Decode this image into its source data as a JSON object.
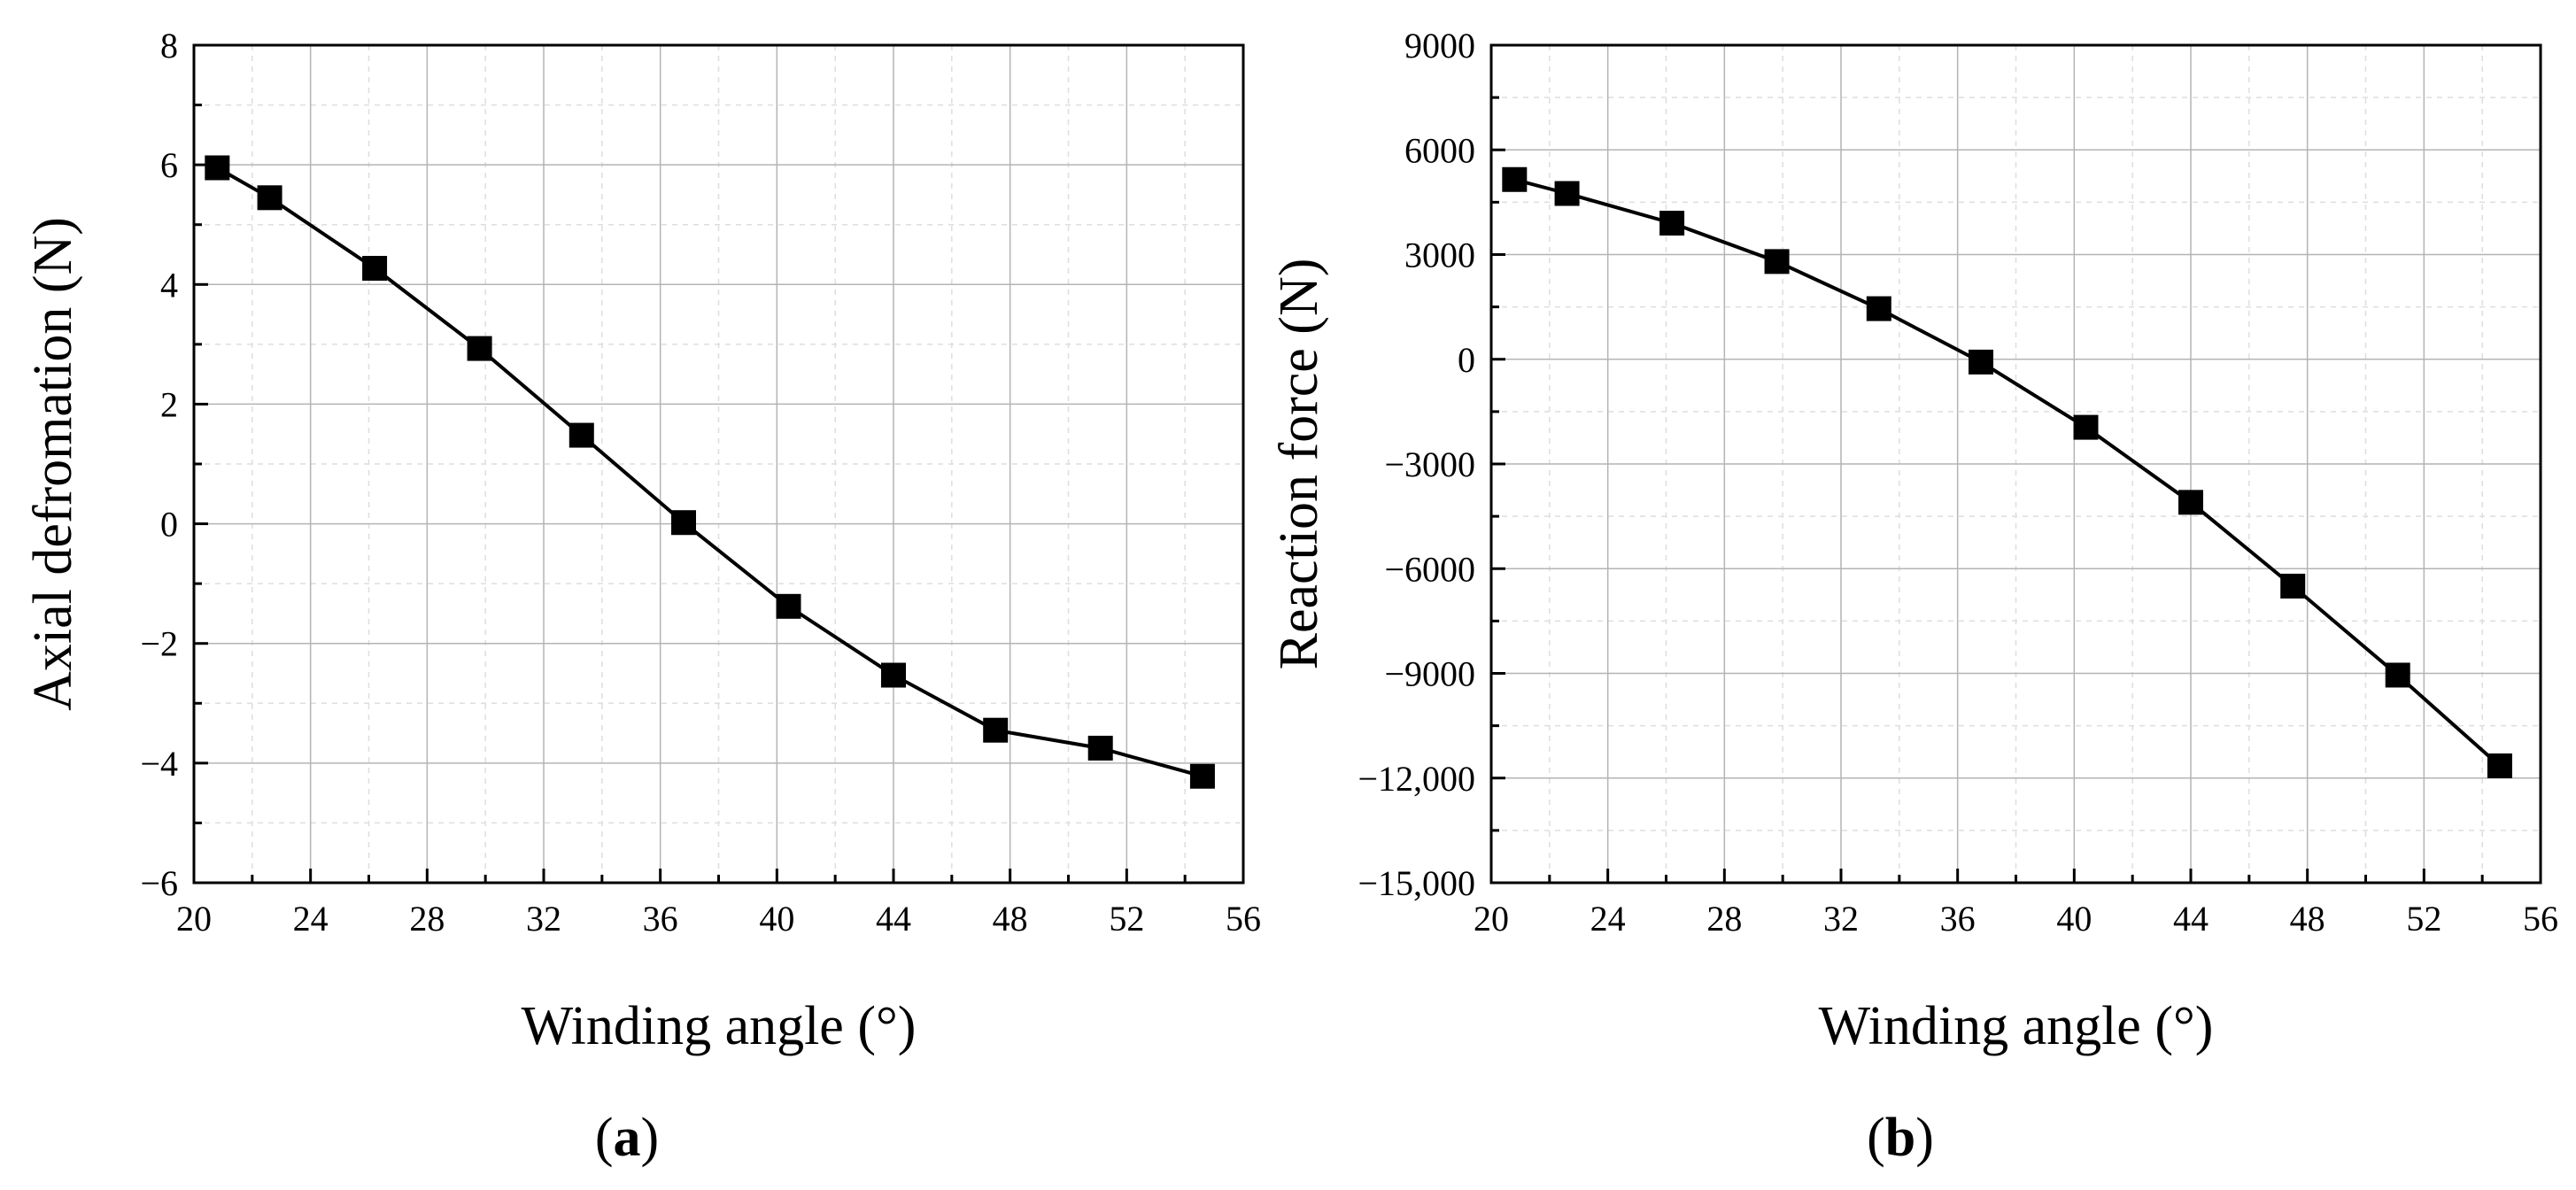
{
  "chart_data": [
    {
      "id": "a",
      "type": "line",
      "panel_label": "a",
      "xlabel": "Winding angle (°)",
      "ylabel": "Axial defromation (N)",
      "xlim": [
        20,
        56
      ],
      "ylim": [
        -6,
        8
      ],
      "xticks": [
        20,
        24,
        28,
        32,
        36,
        40,
        44,
        48,
        52,
        56
      ],
      "xtick_labels": [
        "20",
        "24",
        "28",
        "32",
        "36",
        "40",
        "44",
        "48",
        "52",
        "56"
      ],
      "yticks": [
        8,
        6,
        4,
        2,
        0,
        -2,
        -4,
        -6
      ],
      "ytick_labels": [
        "8",
        "6",
        "4",
        "2",
        "0",
        "−2",
        "−4",
        "−6"
      ],
      "grid": true,
      "series": [
        {
          "name": "Axial deformation",
          "marker": "square",
          "x": [
            20.8,
            22.6,
            26.2,
            29.8,
            33.3,
            36.8,
            40.4,
            44.0,
            47.5,
            51.1,
            54.6
          ],
          "y": [
            5.95,
            5.45,
            4.27,
            2.93,
            1.48,
            0.02,
            -1.38,
            -2.53,
            -3.45,
            -3.75,
            -4.22
          ]
        }
      ]
    },
    {
      "id": "b",
      "type": "line",
      "panel_label": "b",
      "xlabel": "Winding angle (°)",
      "ylabel": "Reaction force (N)",
      "xlim": [
        20,
        56
      ],
      "ylim": [
        -15000,
        9000
      ],
      "xticks": [
        20,
        24,
        28,
        32,
        36,
        40,
        44,
        48,
        52,
        56
      ],
      "xtick_labels": [
        "20",
        "24",
        "28",
        "32",
        "36",
        "40",
        "44",
        "48",
        "52",
        "56"
      ],
      "yticks": [
        9000,
        6000,
        3000,
        0,
        -3000,
        -6000,
        -9000,
        -12000,
        -15000
      ],
      "ytick_labels": [
        "9000",
        "6000",
        "3000",
        "0",
        "−3000",
        "−6000",
        "−9000",
        "−12,000",
        "−15,000"
      ],
      "grid": true,
      "series": [
        {
          "name": "Reaction force",
          "marker": "square",
          "x": [
            20.8,
            22.6,
            26.2,
            29.8,
            33.3,
            36.8,
            40.4,
            44.0,
            47.5,
            51.1,
            54.6
          ],
          "y": [
            5150,
            4750,
            3900,
            2800,
            1450,
            -80,
            -1950,
            -4100,
            -6500,
            -9050,
            -11650
          ]
        }
      ]
    }
  ]
}
